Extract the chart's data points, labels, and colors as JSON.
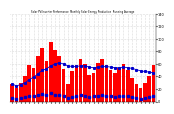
{
  "title": "Solar PV/Inverter Performance  Monthly Solar Energy Production  Running Average",
  "bar_color": "#ff0000",
  "avg_color": "#0000cc",
  "dot_color": "#0000cc",
  "background": "#ffffff",
  "grid_color": "#bbbbbb",
  "ylim": [
    0,
    140
  ],
  "yticks": [
    0,
    20,
    40,
    60,
    80,
    100,
    120,
    140
  ],
  "bar_values": [
    28,
    22,
    30,
    40,
    58,
    54,
    72,
    85,
    65,
    95,
    82,
    72,
    52,
    28,
    48,
    58,
    68,
    60,
    42,
    46,
    62,
    68,
    58,
    50,
    46,
    54,
    60,
    50,
    38,
    28,
    22,
    30,
    40,
    58
  ],
  "avg_values": [
    28,
    25,
    27,
    30,
    35,
    39,
    44,
    50,
    52,
    57,
    60,
    62,
    60,
    57,
    56,
    56,
    57,
    57,
    55,
    54,
    55,
    56,
    56,
    55,
    54,
    54,
    55,
    54,
    53,
    51,
    49,
    48,
    47,
    46
  ],
  "bottom_dots": [
    5,
    4,
    6,
    7,
    9,
    8,
    10,
    12,
    10,
    13,
    11,
    10,
    8,
    5,
    7,
    9,
    10,
    8,
    7,
    8,
    9,
    10,
    9,
    8,
    7,
    8,
    9,
    8,
    7,
    5,
    4,
    6,
    7,
    9
  ],
  "n_bars": 34
}
